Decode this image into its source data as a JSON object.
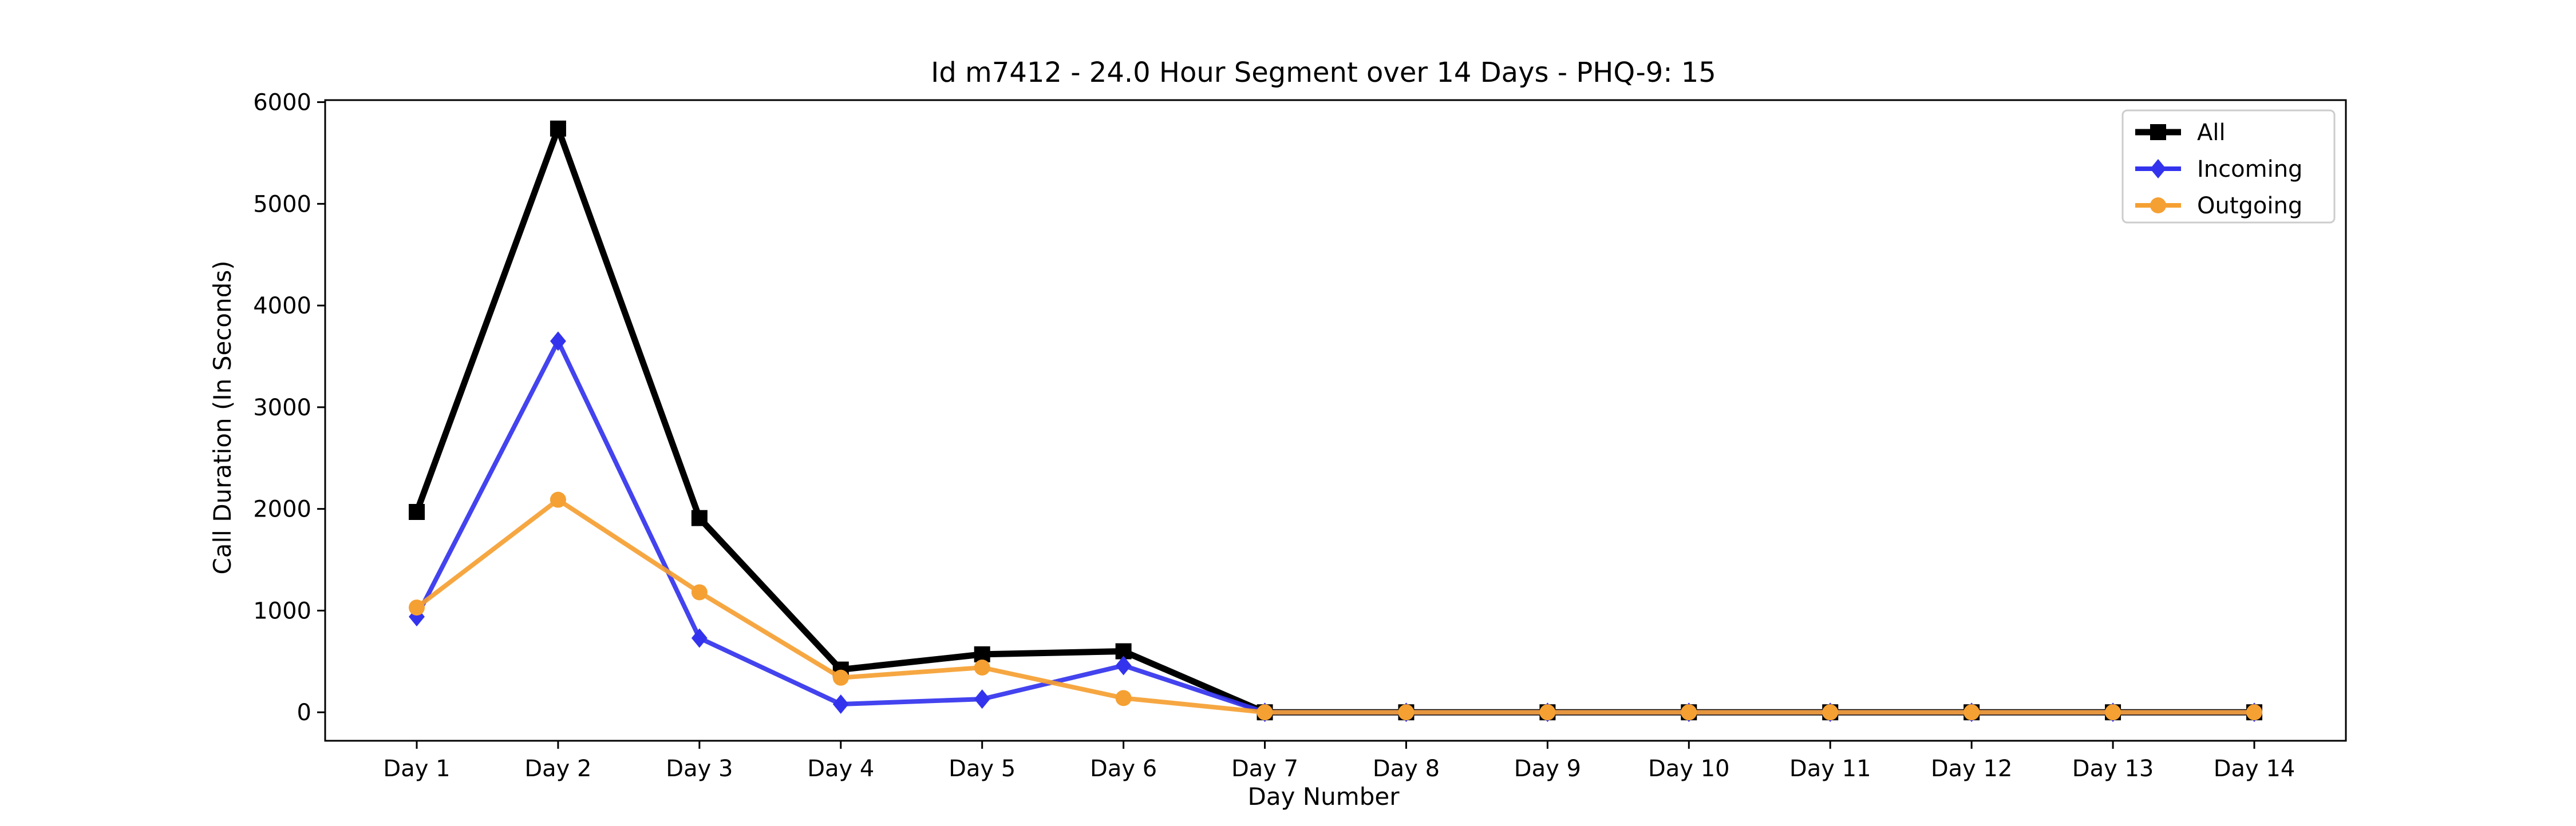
{
  "chart_data": {
    "type": "line",
    "title": "Id m7412 - 24.0 Hour Segment over 14 Days - PHQ-9: 15",
    "xlabel": "Day Number",
    "ylabel": "Call Duration (In Seconds)",
    "categories": [
      "Day 1",
      "Day 2",
      "Day 3",
      "Day 4",
      "Day 5",
      "Day 6",
      "Day 7",
      "Day 8",
      "Day 9",
      "Day 10",
      "Day 11",
      "Day 12",
      "Day 13",
      "Day 14"
    ],
    "ylim": [
      -280,
      6020
    ],
    "yticks": [
      0,
      1000,
      2000,
      3000,
      4000,
      5000,
      6000
    ],
    "grid": false,
    "legend_position": "top-right",
    "series": [
      {
        "name": "All",
        "color": "#000000",
        "marker": "square",
        "values": [
          1970,
          5740,
          1910,
          420,
          570,
          600,
          0,
          0,
          0,
          0,
          0,
          0,
          0,
          0
        ]
      },
      {
        "name": "Incoming",
        "color": "#3333ee",
        "marker": "diamond",
        "values": [
          940,
          3650,
          730,
          80,
          130,
          460,
          0,
          0,
          0,
          0,
          0,
          0,
          0,
          0
        ]
      },
      {
        "name": "Outgoing",
        "color": "#f5a032",
        "marker": "circle",
        "values": [
          1030,
          2090,
          1180,
          340,
          440,
          140,
          0,
          0,
          0,
          0,
          0,
          0,
          0,
          0
        ]
      }
    ]
  }
}
